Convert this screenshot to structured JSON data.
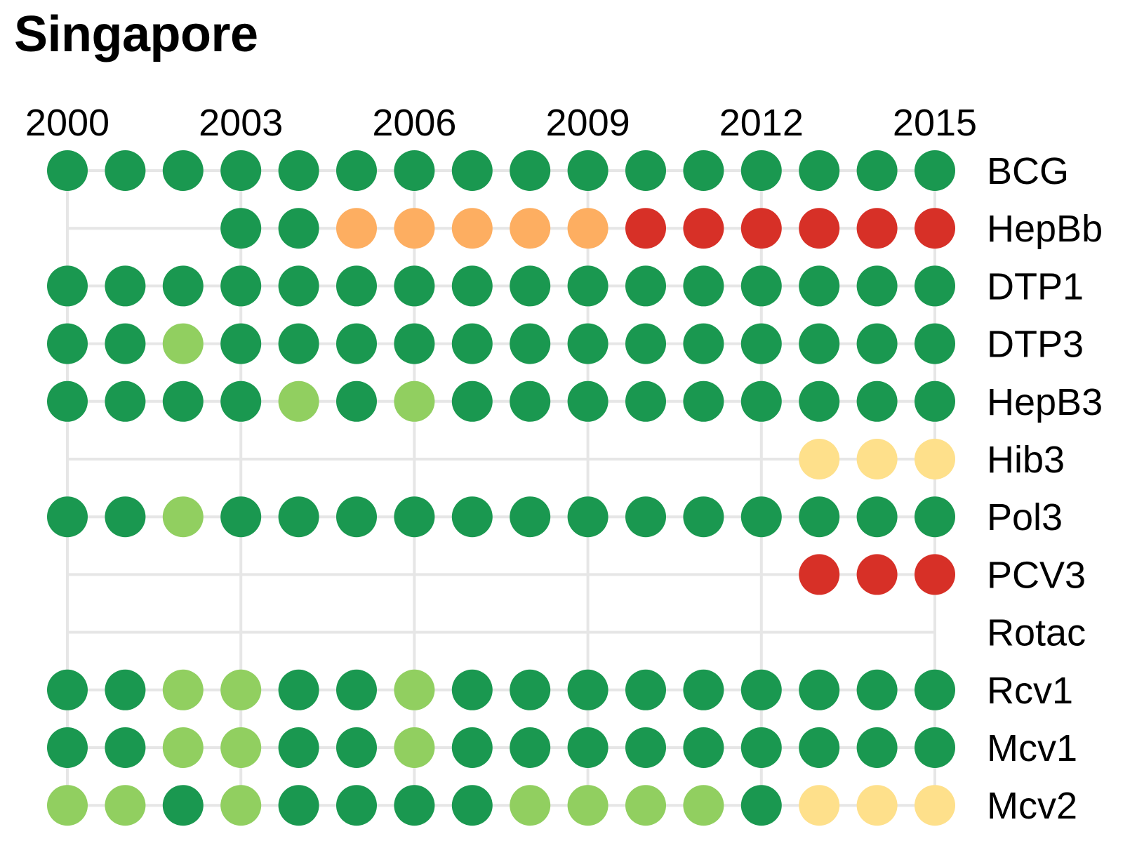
{
  "title": "Singapore",
  "chart_data": {
    "type": "scatter",
    "title": "Singapore",
    "xlabel": "",
    "ylabel": "",
    "x_tick_labels": [
      "2000",
      "2003",
      "2006",
      "2009",
      "2012",
      "2015"
    ],
    "years": [
      2000,
      2001,
      2002,
      2003,
      2004,
      2005,
      2006,
      2007,
      2008,
      2009,
      2010,
      2011,
      2012,
      2013,
      2014,
      2015
    ],
    "grid": true,
    "legend": "none",
    "colors": {
      "G": "#1a9850",
      "L": "#91cf60",
      "Y": "#fee08b",
      "O": "#fdae61",
      "R": "#d73027"
    },
    "series": [
      {
        "name": "BCG",
        "status": [
          "G",
          "G",
          "G",
          "G",
          "G",
          "G",
          "G",
          "G",
          "G",
          "G",
          "G",
          "G",
          "G",
          "G",
          "G",
          "G"
        ]
      },
      {
        "name": "HepBb",
        "status": [
          null,
          null,
          null,
          "G",
          "G",
          "O",
          "O",
          "O",
          "O",
          "O",
          "R",
          "R",
          "R",
          "R",
          "R",
          "R"
        ]
      },
      {
        "name": "DTP1",
        "status": [
          "G",
          "G",
          "G",
          "G",
          "G",
          "G",
          "G",
          "G",
          "G",
          "G",
          "G",
          "G",
          "G",
          "G",
          "G",
          "G"
        ]
      },
      {
        "name": "DTP3",
        "status": [
          "G",
          "G",
          "L",
          "G",
          "G",
          "G",
          "G",
          "G",
          "G",
          "G",
          "G",
          "G",
          "G",
          "G",
          "G",
          "G"
        ]
      },
      {
        "name": "HepB3",
        "status": [
          "G",
          "G",
          "G",
          "G",
          "L",
          "G",
          "L",
          "G",
          "G",
          "G",
          "G",
          "G",
          "G",
          "G",
          "G",
          "G"
        ]
      },
      {
        "name": "Hib3",
        "status": [
          null,
          null,
          null,
          null,
          null,
          null,
          null,
          null,
          null,
          null,
          null,
          null,
          null,
          "Y",
          "Y",
          "Y"
        ]
      },
      {
        "name": "Pol3",
        "status": [
          "G",
          "G",
          "L",
          "G",
          "G",
          "G",
          "G",
          "G",
          "G",
          "G",
          "G",
          "G",
          "G",
          "G",
          "G",
          "G"
        ]
      },
      {
        "name": "PCV3",
        "status": [
          null,
          null,
          null,
          null,
          null,
          null,
          null,
          null,
          null,
          null,
          null,
          null,
          null,
          "R",
          "R",
          "R"
        ]
      },
      {
        "name": "Rotac",
        "status": [
          null,
          null,
          null,
          null,
          null,
          null,
          null,
          null,
          null,
          null,
          null,
          null,
          null,
          null,
          null,
          null
        ]
      },
      {
        "name": "Rcv1",
        "status": [
          "G",
          "G",
          "L",
          "L",
          "G",
          "G",
          "L",
          "G",
          "G",
          "G",
          "G",
          "G",
          "G",
          "G",
          "G",
          "G"
        ]
      },
      {
        "name": "Mcv1",
        "status": [
          "G",
          "G",
          "L",
          "L",
          "G",
          "G",
          "L",
          "G",
          "G",
          "G",
          "G",
          "G",
          "G",
          "G",
          "G",
          "G"
        ]
      },
      {
        "name": "Mcv2",
        "status": [
          "L",
          "L",
          "G",
          "L",
          "G",
          "G",
          "G",
          "G",
          "L",
          "L",
          "L",
          "L",
          "G",
          "Y",
          "Y",
          "Y"
        ]
      }
    ]
  }
}
